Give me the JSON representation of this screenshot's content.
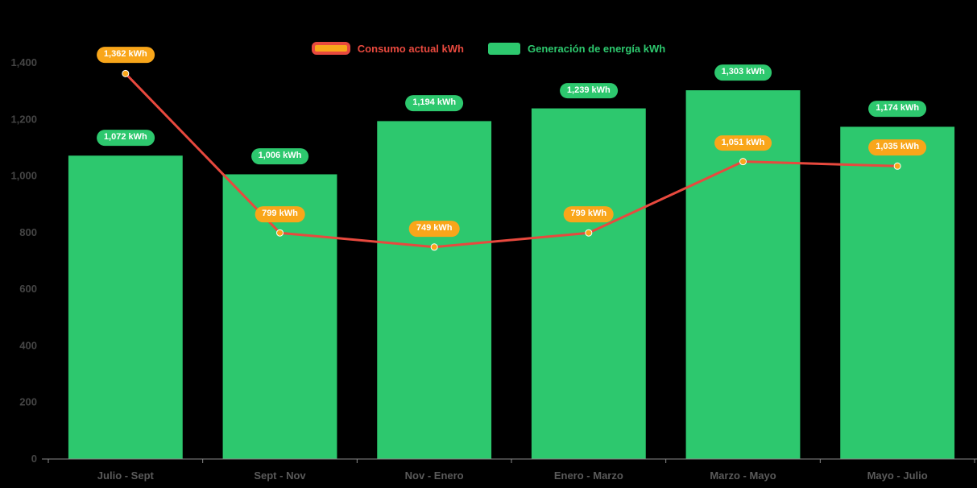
{
  "chart_data": {
    "type": "combo",
    "title": "",
    "categories": [
      "Julio - Sept",
      "Sept - Nov",
      "Nov - Enero",
      "Enero - Marzo",
      "Marzo - Mayo",
      "Mayo - Julio"
    ],
    "series": [
      {
        "name": "Consumo actual kWh",
        "type": "line",
        "color": "#e8493e",
        "marker_color": "#f9a61a",
        "label_bg": "#f9a61a",
        "values": [
          1362,
          799,
          749,
          799,
          1051,
          1035
        ],
        "labels": [
          "1,362 kWh",
          "799 kWh",
          "749 kWh",
          "799 kWh",
          "1,051 kWh",
          "1,035 kWh"
        ]
      },
      {
        "name": "Generación de energía kWh",
        "type": "bar",
        "color": "#2dc86e",
        "label_bg": "#2dc86e",
        "values": [
          1072,
          1006,
          1194,
          1239,
          1303,
          1174
        ],
        "labels": [
          "1,072 kWh",
          "1,006 kWh",
          "1,194 kWh",
          "1,239 kWh",
          "1,303 kWh",
          "1,174 kWh"
        ]
      }
    ],
    "y_ticks": [
      0,
      200,
      400,
      600,
      800,
      1000,
      1200,
      1400
    ],
    "y_tick_labels": [
      "0",
      "200",
      "400",
      "600",
      "800",
      "1,000",
      "1,200",
      "1,400"
    ],
    "ylim": [
      0,
      1400
    ],
    "legend_position": "top",
    "grid": false,
    "background": "#000000",
    "axis_text_color": "#454545",
    "x_axis_text_color": "#5a5a5a",
    "axis_line_color": "#8a8a8a"
  }
}
